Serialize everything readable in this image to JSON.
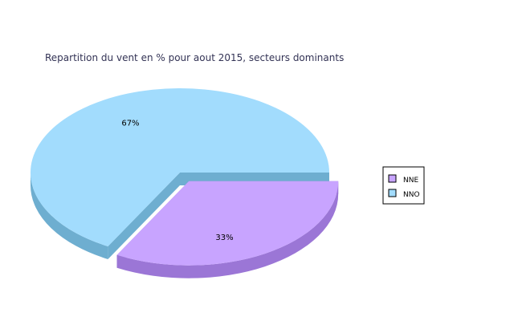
{
  "chart_data": {
    "type": "pie",
    "title": "Repartition du vent en % pour aout 2015, secteurs dominants",
    "categories": [
      "NNE",
      "NNO"
    ],
    "values": [
      33,
      67
    ],
    "labels": [
      "33%",
      "67%"
    ],
    "colors": {
      "NNE": {
        "top": "#c8a4ff",
        "side": "#9b76d6"
      },
      "NNO": {
        "top": "#a2dcfd",
        "side": "#6eaed0"
      }
    },
    "exploded": "NNE",
    "style": "3d",
    "legend_position": "right"
  }
}
